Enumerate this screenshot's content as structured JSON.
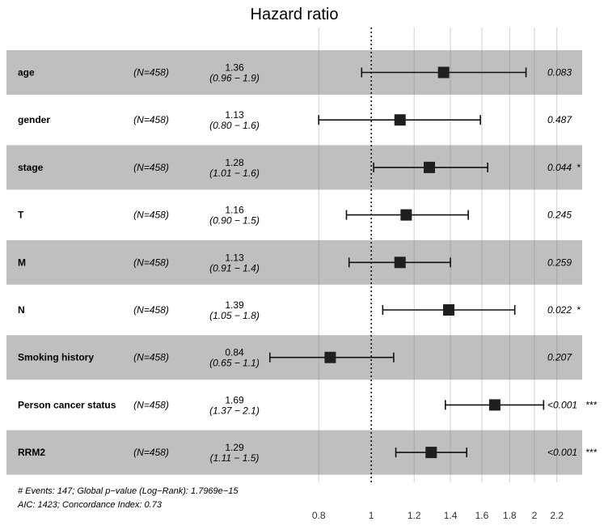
{
  "chart_data": {
    "type": "forest",
    "title": "Hazard ratio",
    "x_scale": "log",
    "xlim": [
      0.62,
      2.45
    ],
    "reference_line": 1,
    "x_ticks": [
      "0.8",
      "1",
      "1.2",
      "1.4",
      "1.6",
      "1.8",
      "2",
      "2.2"
    ],
    "x_tick_values": [
      0.8,
      1,
      1.2,
      1.4,
      1.6,
      1.8,
      2,
      2.2
    ],
    "rows": [
      {
        "label": "age",
        "n": "(N=458)",
        "hr_text": "1.36",
        "ci_text": "(0.96 − 1.9)",
        "hr": 1.36,
        "lo": 0.96,
        "hi": 1.93,
        "p": "0.083",
        "stars": "",
        "shaded": true
      },
      {
        "label": "gender",
        "n": "(N=458)",
        "hr_text": "1.13",
        "ci_text": "(0.80 − 1.6)",
        "hr": 1.13,
        "lo": 0.8,
        "hi": 1.59,
        "p": "0.487",
        "stars": "",
        "shaded": false
      },
      {
        "label": "stage",
        "n": "(N=458)",
        "hr_text": "1.28",
        "ci_text": "(1.01 − 1.6)",
        "hr": 1.28,
        "lo": 1.01,
        "hi": 1.64,
        "p": "0.044",
        "stars": "*",
        "shaded": true
      },
      {
        "label": "T",
        "n": "(N=458)",
        "hr_text": "1.16",
        "ci_text": "(0.90 − 1.5)",
        "hr": 1.16,
        "lo": 0.9,
        "hi": 1.51,
        "p": "0.245",
        "stars": "",
        "shaded": false
      },
      {
        "label": "M",
        "n": "(N=458)",
        "hr_text": "1.13",
        "ci_text": "(0.91 − 1.4)",
        "hr": 1.13,
        "lo": 0.91,
        "hi": 1.4,
        "p": "0.259",
        "stars": "",
        "shaded": true
      },
      {
        "label": "N",
        "n": "(N=458)",
        "hr_text": "1.39",
        "ci_text": "(1.05 − 1.8)",
        "hr": 1.39,
        "lo": 1.05,
        "hi": 1.84,
        "p": "0.022",
        "stars": "*",
        "shaded": false
      },
      {
        "label": "Smoking history",
        "n": "(N=458)",
        "hr_text": "0.84",
        "ci_text": "(0.65 − 1.1)",
        "hr": 0.84,
        "lo": 0.65,
        "hi": 1.1,
        "p": "0.207",
        "stars": "",
        "shaded": true
      },
      {
        "label": "Person cancer status",
        "n": "(N=458)",
        "hr_text": "1.69",
        "ci_text": "(1.37 − 2.1)",
        "hr": 1.69,
        "lo": 1.37,
        "hi": 2.08,
        "p": "<0.001",
        "stars": "***",
        "shaded": false
      },
      {
        "label": "RRM2",
        "n": "(N=458)",
        "hr_text": "1.29",
        "ci_text": "(1.11 − 1.5)",
        "hr": 1.29,
        "lo": 1.11,
        "hi": 1.5,
        "p": "<0.001",
        "stars": "***",
        "shaded": true
      }
    ],
    "footnote_1": "# Events: 147; Global p−value (Log−Rank): 1.7969e−15",
    "footnote_2": "AIC: 1423; Concordance Index: 0.73",
    "colors": {
      "shade": "#bfbfbf",
      "marker": "#1f1f1f",
      "grid": "#d9d9d9"
    }
  }
}
